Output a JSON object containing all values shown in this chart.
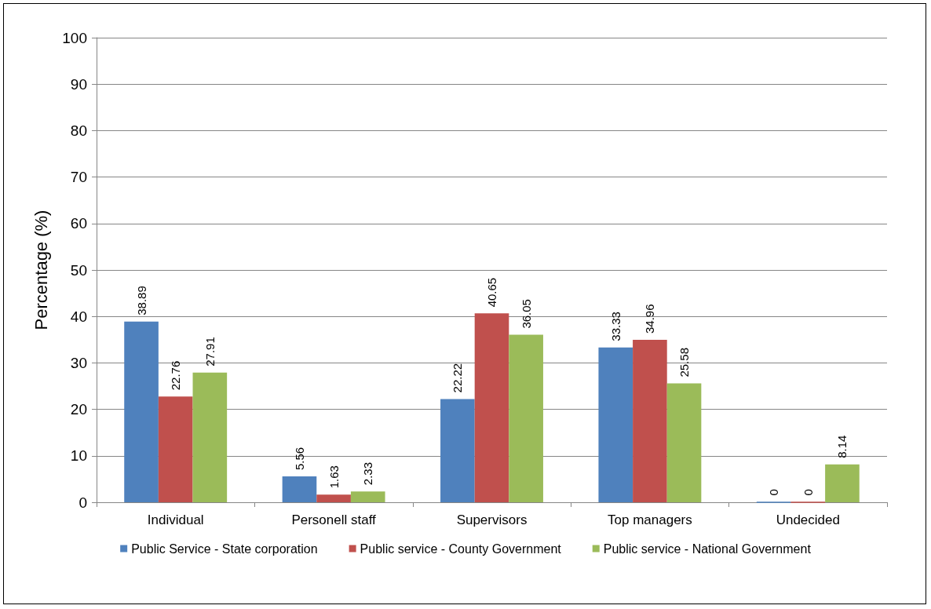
{
  "chart_data": {
    "type": "bar",
    "ylabel": "Percentage (%)",
    "categories": [
      "Individual",
      "Personell staff",
      "Supervisors",
      "Top managers",
      "Undecided"
    ],
    "series": [
      {
        "name": "Public Service - State corporation",
        "color": "#4f81bd",
        "values": [
          38.89,
          5.56,
          22.22,
          33.33,
          0
        ]
      },
      {
        "name": "Public service - County Government",
        "color": "#c0504d",
        "values": [
          22.76,
          1.63,
          40.65,
          34.96,
          0
        ]
      },
      {
        "name": "Public service - National Government",
        "color": "#9bbb59",
        "values": [
          27.91,
          2.33,
          36.05,
          25.58,
          8.14
        ]
      }
    ],
    "ylim": [
      0,
      100
    ],
    "yticks": [
      0,
      10,
      20,
      30,
      40,
      50,
      60,
      70,
      80,
      90,
      100
    ],
    "grid": "y",
    "legend": "bottom",
    "data_labels": true
  }
}
